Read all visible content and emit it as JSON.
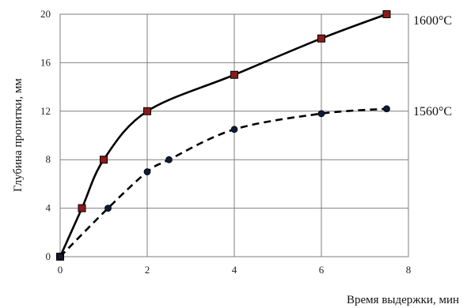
{
  "chart_data": {
    "type": "line",
    "xlabel": "Время выдержки, мин",
    "ylabel": "Глубина пропитки, мм",
    "xlim": [
      0,
      8
    ],
    "ylim": [
      0,
      20
    ],
    "xticks": [
      0,
      2,
      4,
      6,
      8
    ],
    "yticks": [
      0,
      4,
      8,
      12,
      16,
      20
    ],
    "grid": true,
    "series": [
      {
        "name": "1600°C",
        "line_style": "solid",
        "marker": "square",
        "marker_color": "#8b1a1a",
        "x": [
          0,
          0.5,
          1,
          2,
          4,
          6,
          7.5
        ],
        "y": [
          0,
          4,
          8,
          12,
          15,
          18,
          20
        ]
      },
      {
        "name": "1560°C",
        "line_style": "dashed",
        "marker": "circle",
        "marker_color": "#0d1b3a",
        "x": [
          0,
          1.1,
          2,
          2.5,
          4,
          6,
          7.5
        ],
        "y": [
          0,
          4,
          7,
          8,
          10.5,
          11.8,
          12.2
        ]
      }
    ]
  }
}
